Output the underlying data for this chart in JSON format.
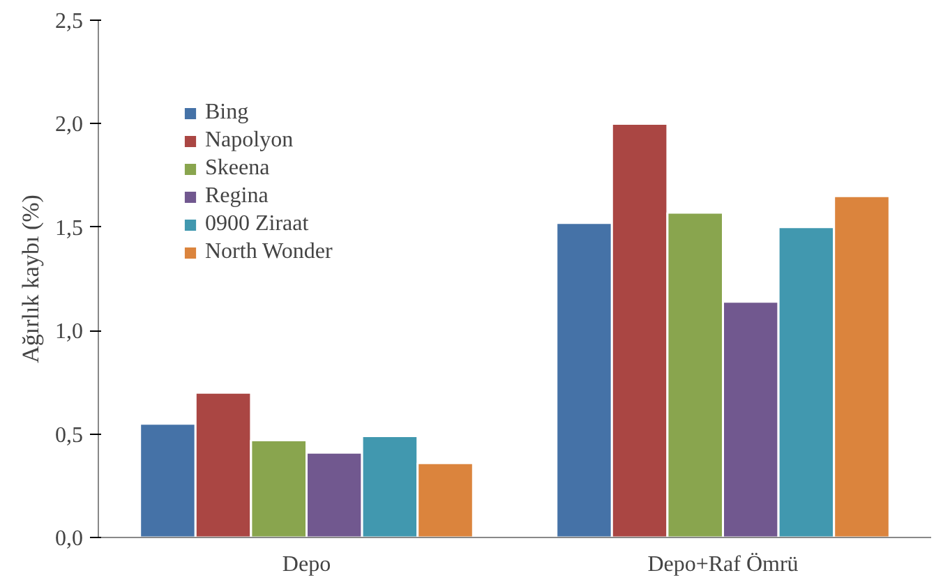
{
  "chart_data": {
    "type": "bar",
    "ylabel": "Ağırlık kaybı (%)",
    "categories": [
      "Depo",
      "Depo+Raf Ömrü"
    ],
    "series": [
      {
        "name": "Bing",
        "color": "#4572a7",
        "values": [
          0.55,
          1.52
        ]
      },
      {
        "name": "Napolyon",
        "color": "#aa4643",
        "values": [
          0.7,
          2.0
        ]
      },
      {
        "name": "Skeena",
        "color": "#89a54e",
        "values": [
          0.47,
          1.57
        ]
      },
      {
        "name": "Regina",
        "color": "#71588f",
        "values": [
          0.41,
          1.14
        ]
      },
      {
        "name": "0900 Ziraat",
        "color": "#4198af",
        "values": [
          0.49,
          1.5
        ]
      },
      {
        "name": "North Wonder",
        "color": "#db843d",
        "values": [
          0.36,
          1.65
        ]
      }
    ],
    "ylim": [
      0,
      2.5
    ],
    "yticks": [
      {
        "value": 0,
        "label": "0,0"
      },
      {
        "value": 0.5,
        "label": "0,5"
      },
      {
        "value": 1,
        "label": "1,0"
      },
      {
        "value": 1.5,
        "label": "1,5"
      },
      {
        "value": 2,
        "label": "2,0"
      },
      {
        "value": 2.5,
        "label": "2,5"
      }
    ],
    "grid": false,
    "legend": "top left"
  }
}
